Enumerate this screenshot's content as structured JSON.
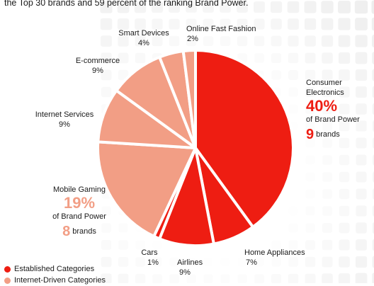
{
  "intro_text": "the Top 30 brands and 59 percent of the ranking Brand Power.",
  "colors": {
    "established": "#ee1d12",
    "internet": "#f29e85",
    "pattern": "#e9e9e9"
  },
  "chart_data": {
    "type": "pie",
    "title": "",
    "start_angle_deg": 0,
    "slices": [
      {
        "label": "Consumer Electronics",
        "value": 40,
        "value_text": "40%",
        "group": "established",
        "brands": 9,
        "share_text": "of Brand Power",
        "brands_text": "brands"
      },
      {
        "label": "Home Appliances",
        "value": 7,
        "value_text": "7%",
        "group": "established"
      },
      {
        "label": "Airlines",
        "value": 9,
        "value_text": "9%",
        "group": "established"
      },
      {
        "label": "Cars",
        "value": 1,
        "value_text": "1%",
        "group": "established"
      },
      {
        "label": "Mobile Gaming",
        "value": 19,
        "value_text": "19%",
        "group": "internet",
        "brands": 8,
        "share_text": "of Brand Power",
        "brands_text": "brands"
      },
      {
        "label": "Internet Services",
        "value": 9,
        "value_text": "9%",
        "group": "internet"
      },
      {
        "label": "E-commerce",
        "value": 9,
        "value_text": "9%",
        "group": "internet"
      },
      {
        "label": "Smart Devices",
        "value": 4,
        "value_text": "4%",
        "group": "internet"
      },
      {
        "label": "Online Fast Fashion",
        "value": 2,
        "value_text": "2%",
        "group": "internet"
      }
    ],
    "legend": [
      {
        "label": "Established Categories",
        "group": "established"
      },
      {
        "label": "Internet-Driven Categories",
        "group": "internet"
      }
    ],
    "legend_position": "bottom-left"
  }
}
